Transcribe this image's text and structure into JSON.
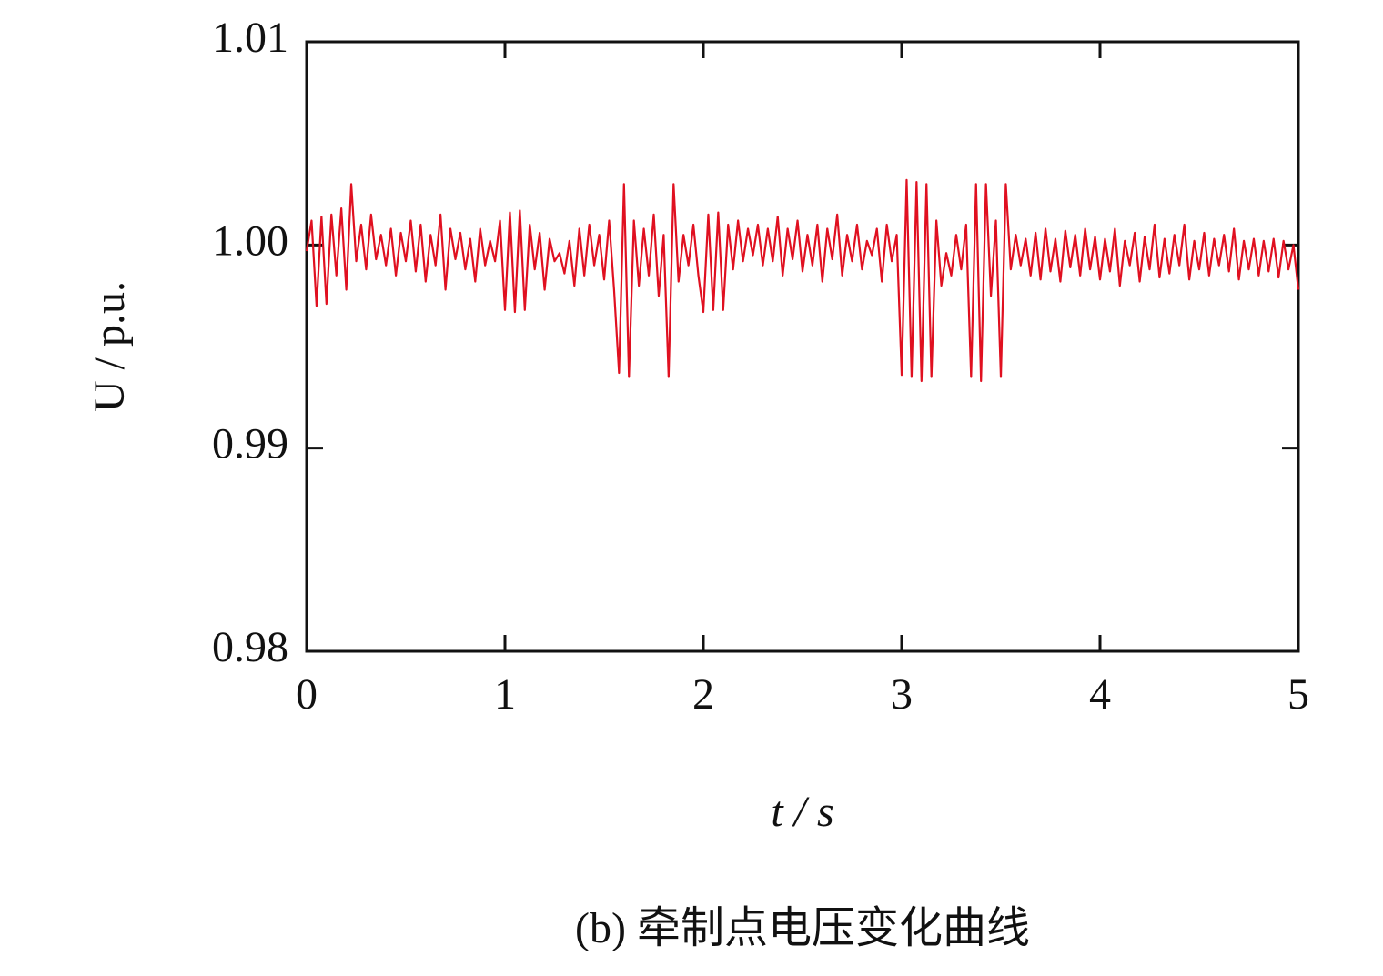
{
  "chart_data": {
    "type": "line",
    "title": "(b) 牵制点电压变化曲线",
    "xlabel": "t / s",
    "ylabel": "U / p.u.",
    "xlim": [
      0,
      5
    ],
    "xticks": [
      0,
      1,
      2,
      3,
      4,
      5
    ],
    "ylim": [
      0.98,
      1.01
    ],
    "yticks": [
      0.98,
      0.99,
      {
        "value": 1,
        "label": "1.00"
      },
      1.01
    ],
    "x": [
      0,
      0.025,
      0.05,
      0.075,
      0.1,
      0.125,
      0.15,
      0.175,
      0.2,
      0.225,
      0.25,
      0.275,
      0.3,
      0.325,
      0.35,
      0.375,
      0.4,
      0.425,
      0.45,
      0.475,
      0.5,
      0.525,
      0.55,
      0.575,
      0.6,
      0.625,
      0.65,
      0.675,
      0.7,
      0.725,
      0.75,
      0.775,
      0.8,
      0.825,
      0.85,
      0.875,
      0.9,
      0.925,
      0.95,
      0.975,
      1,
      1.025,
      1.05,
      1.075,
      1.1,
      1.125,
      1.15,
      1.175,
      1.2,
      1.225,
      1.25,
      1.275,
      1.3,
      1.325,
      1.35,
      1.375,
      1.4,
      1.425,
      1.45,
      1.475,
      1.5,
      1.525,
      1.55,
      1.575,
      1.6,
      1.625,
      1.65,
      1.675,
      1.7,
      1.725,
      1.75,
      1.775,
      1.8,
      1.825,
      1.85,
      1.875,
      1.9,
      1.925,
      1.95,
      1.975,
      2,
      2.025,
      2.05,
      2.075,
      2.1,
      2.125,
      2.15,
      2.175,
      2.2,
      2.225,
      2.25,
      2.275,
      2.3,
      2.325,
      2.35,
      2.375,
      2.4,
      2.425,
      2.45,
      2.475,
      2.5,
      2.525,
      2.55,
      2.575,
      2.6,
      2.625,
      2.65,
      2.675,
      2.7,
      2.725,
      2.75,
      2.775,
      2.8,
      2.825,
      2.85,
      2.875,
      2.9,
      2.925,
      2.95,
      2.975,
      3,
      3.025,
      3.05,
      3.075,
      3.1,
      3.125,
      3.15,
      3.175,
      3.2,
      3.225,
      3.25,
      3.275,
      3.3,
      3.325,
      3.35,
      3.375,
      3.4,
      3.425,
      3.45,
      3.475,
      3.5,
      3.525,
      3.55,
      3.575,
      3.6,
      3.625,
      3.65,
      3.675,
      3.7,
      3.725,
      3.75,
      3.775,
      3.8,
      3.825,
      3.85,
      3.875,
      3.9,
      3.925,
      3.95,
      3.975,
      4,
      4.025,
      4.05,
      4.075,
      4.1,
      4.125,
      4.15,
      4.175,
      4.2,
      4.225,
      4.25,
      4.275,
      4.3,
      4.325,
      4.35,
      4.375,
      4.4,
      4.425,
      4.45,
      4.475,
      4.5,
      4.525,
      4.55,
      4.575,
      4.6,
      4.625,
      4.65,
      4.675,
      4.7,
      4.725,
      4.75,
      4.775,
      4.8,
      4.825,
      4.85,
      4.875,
      4.9,
      4.925,
      4.95,
      4.975,
      5
    ],
    "series": [
      {
        "color": "#e01020",
        "values": [
          0.9997,
          1.0012,
          0.997,
          1.0014,
          0.9971,
          1.0015,
          0.9985,
          1.0018,
          0.9978,
          1.003,
          0.9992,
          1.001,
          0.9988,
          1.0015,
          0.9993,
          1.0005,
          0.999,
          1.0008,
          0.9985,
          1.0006,
          0.9992,
          1.0012,
          0.9987,
          1.001,
          0.9982,
          1.0005,
          0.999,
          1.0015,
          0.9978,
          1.0008,
          0.9993,
          1.0006,
          0.9988,
          1.0003,
          0.9982,
          1.0008,
          0.999,
          1.0002,
          0.9992,
          1.0012,
          0.9968,
          1.0016,
          0.9967,
          1.0017,
          0.9968,
          1.001,
          0.9988,
          1.0006,
          0.9978,
          1.0003,
          0.9992,
          0.9996,
          0.9986,
          1.0002,
          0.998,
          1.0008,
          0.9985,
          1.001,
          0.999,
          1.0005,
          0.9983,
          1.0012,
          0.9978,
          0.9937,
          1.003,
          0.9935,
          1.0012,
          0.998,
          1.0008,
          0.9985,
          1.0015,
          0.9975,
          1.0005,
          0.9935,
          1.003,
          0.9982,
          1.0005,
          0.999,
          1.001,
          0.9985,
          0.9967,
          1.0015,
          0.9968,
          1.0016,
          0.9968,
          1.001,
          0.9988,
          1.0012,
          0.9992,
          1.0008,
          0.9995,
          1.001,
          0.999,
          1.0008,
          0.9992,
          1.0014,
          0.9985,
          1.0008,
          0.9993,
          1.0012,
          0.9987,
          1.0005,
          0.999,
          1.001,
          0.9982,
          1.0008,
          0.9993,
          1.0015,
          0.9985,
          1.0005,
          0.9992,
          1.001,
          0.9988,
          1.0002,
          0.9995,
          1.0008,
          0.9982,
          1.001,
          0.9992,
          1.0005,
          0.9936,
          1.0032,
          0.9935,
          1.0031,
          0.9933,
          1.003,
          0.9935,
          1.0012,
          0.998,
          0.9996,
          0.9985,
          1.0005,
          0.9988,
          1.001,
          0.9935,
          1.003,
          0.9933,
          1.003,
          0.9975,
          1.0012,
          0.9935,
          1.003,
          0.9988,
          1.0005,
          0.999,
          1.0003,
          0.9985,
          1.0006,
          0.9983,
          1.0008,
          0.9987,
          1.0003,
          0.9982,
          1.0007,
          0.9989,
          1.0005,
          0.9985,
          1.0008,
          0.9988,
          1.0004,
          0.9983,
          1.0003,
          0.9987,
          1.0008,
          0.998,
          1.0002,
          0.999,
          1.0006,
          0.9982,
          1.0004,
          0.9988,
          1.001,
          0.9984,
          1.0003,
          0.9986,
          1.0005,
          0.999,
          1.001,
          0.9983,
          1.0002,
          0.9988,
          1.0006,
          0.9985,
          1.0003,
          0.999,
          1.0005,
          0.9987,
          1.0008,
          0.9983,
          1.0002,
          0.9988,
          1.0003,
          0.9985,
          1.0002,
          0.9987,
          1.0003,
          0.9984,
          1.0002,
          0.9988,
          1.0,
          0.9978
        ]
      }
    ]
  }
}
